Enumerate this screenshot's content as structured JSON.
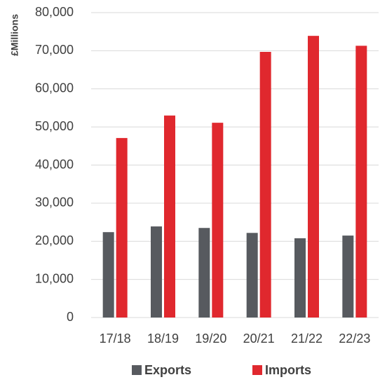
{
  "chart_data": {
    "type": "bar",
    "y_axis_label": "£Millions",
    "categories": [
      "17/18",
      "18/19",
      "19/20",
      "20/21",
      "21/22",
      "22/23"
    ],
    "series": [
      {
        "name": "Exports",
        "color": "#575a5f",
        "values": [
          22400,
          23900,
          23500,
          22200,
          20800,
          21500
        ]
      },
      {
        "name": "Imports",
        "color": "#e0282e",
        "values": [
          47100,
          53000,
          51100,
          69700,
          73900,
          71300
        ]
      }
    ],
    "ylim": [
      0,
      80000
    ],
    "yticks": [
      0,
      {
        "value": 10000,
        "label": "10,000"
      },
      {
        "value": 20000,
        "label": "20,000"
      },
      {
        "value": 30000,
        "label": "30,000"
      },
      {
        "value": 40000,
        "label": "40,000"
      },
      {
        "value": 50000,
        "label": "50,000"
      },
      {
        "value": 60000,
        "label": "60,000"
      },
      {
        "value": 70000,
        "label": "70,000"
      },
      {
        "value": 80000,
        "label": "80,000"
      }
    ],
    "grid": true,
    "legend": "bottom"
  }
}
